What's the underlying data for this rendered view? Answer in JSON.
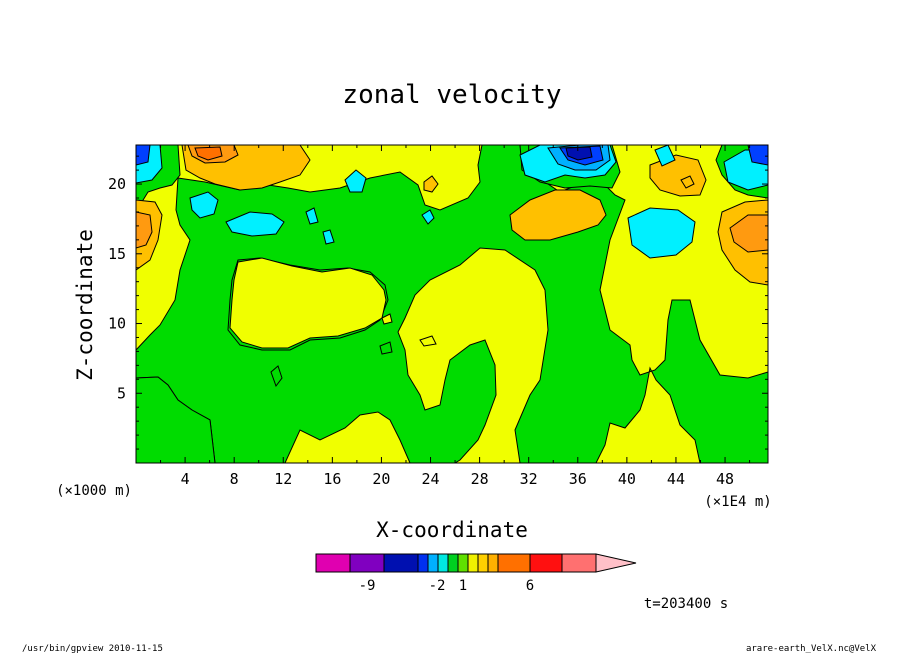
{
  "chart_data": {
    "type": "heatmap",
    "title": "zonal velocity",
    "xlabel": "X-coordinate",
    "ylabel": "Z-coordinate",
    "x_unit": "(×1E4 m)",
    "y_unit": "(×1000 m)",
    "xlim": [
      0,
      51.5
    ],
    "ylim": [
      0,
      22.8
    ],
    "x_ticks": [
      "4",
      "8",
      "12",
      "16",
      "20",
      "24",
      "28",
      "32",
      "36",
      "40",
      "44",
      "48"
    ],
    "y_ticks": [
      "5",
      "10",
      "15",
      "20"
    ],
    "colorbar": {
      "labels": [
        "-9",
        "-2",
        "1",
        "6"
      ],
      "colors": [
        "#e000b0",
        "#8000c0",
        "#0010b0",
        "#0030f0",
        "#00b0ff",
        "#00e8e0",
        "#00d020",
        "#60e000",
        "#f0f000",
        "#ffd000",
        "#ffb000",
        "#ff7000",
        "#ff1010",
        "#ff7070",
        "#ffc0c8"
      ]
    },
    "regions": {
      "background": "#f0ff00",
      "green": "#00dc00",
      "light_orange": "#ffc000",
      "orange": "#ff9a10",
      "dark_orange": "#ff7000",
      "cyan": "#00f0ff",
      "light_blue": "#00b0ff",
      "blue": "#0040ff",
      "dark_blue": "#0010b0"
    }
  },
  "time_label": "t=203400 s",
  "footer": {
    "left": "/usr/bin/gpview   2010-11-15",
    "right": "arare-earth_VelX.nc@VelX"
  }
}
